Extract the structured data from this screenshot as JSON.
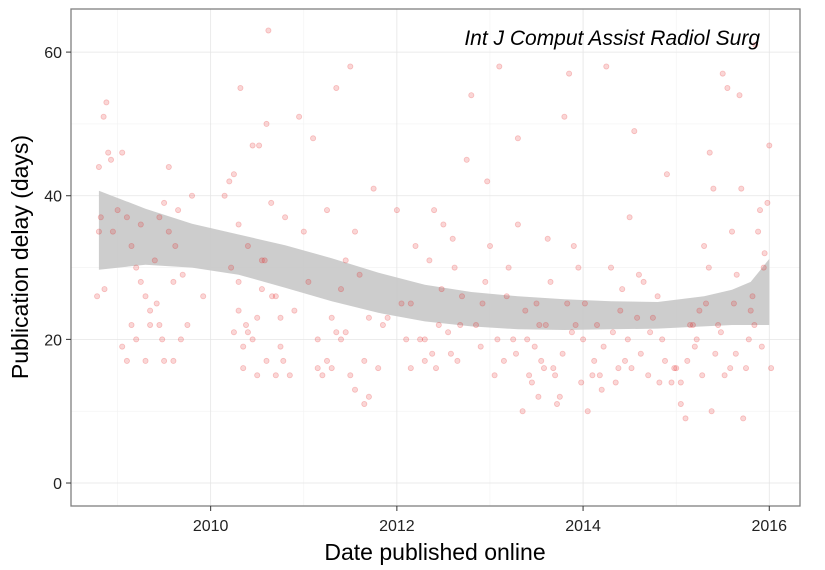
{
  "chart_data": {
    "type": "scatter",
    "annotation": "Int J Comput Assist Radiol Surg",
    "xlabel": "Date published online",
    "ylabel": "Publication delay (days)",
    "xlim": [
      2008.5,
      2016.33
    ],
    "ylim": [
      -3.2,
      66.0
    ],
    "x_ticks": [
      2010,
      2012,
      2014,
      2016
    ],
    "y_ticks": [
      0,
      20,
      40,
      60
    ],
    "grid": "major and minor",
    "point_color": "#e41a1c",
    "point_opacity": 0.18,
    "band_color": "#c8c8c8",
    "smooth_band": {
      "x": [
        2008.8,
        2009.3,
        2009.8,
        2010.3,
        2010.8,
        2011.3,
        2011.8,
        2012.3,
        2012.8,
        2013.3,
        2013.8,
        2014.3,
        2014.8,
        2015.3,
        2015.6,
        2015.8,
        2016.0
      ],
      "lower": [
        29.7,
        30.4,
        30.0,
        29.0,
        27.2,
        25.3,
        23.7,
        22.5,
        21.8,
        21.4,
        21.3,
        21.4,
        21.5,
        21.8,
        22.0,
        22.0,
        22.0
      ],
      "upper": [
        40.7,
        38.2,
        36.1,
        34.6,
        33.1,
        31.3,
        29.3,
        27.6,
        26.6,
        26.0,
        25.6,
        25.3,
        25.2,
        26.0,
        26.9,
        28.0,
        31.2
      ]
    },
    "series": [
      {
        "points": [
          [
            2008.8,
            35
          ],
          [
            2008.8,
            44
          ],
          [
            2008.82,
            37
          ],
          [
            2008.85,
            51
          ],
          [
            2008.88,
            53
          ],
          [
            2008.9,
            46
          ],
          [
            2008.93,
            45
          ],
          [
            2008.95,
            35
          ],
          [
            2008.78,
            26
          ],
          [
            2008.86,
            27
          ],
          [
            2009.0,
            38
          ],
          [
            2009.05,
            46
          ],
          [
            2009.1,
            37
          ],
          [
            2009.15,
            33
          ],
          [
            2009.2,
            30
          ],
          [
            2009.25,
            36
          ],
          [
            2009.3,
            26
          ],
          [
            2009.35,
            22
          ],
          [
            2009.4,
            31
          ],
          [
            2009.42,
            25
          ],
          [
            2009.45,
            22
          ],
          [
            2009.5,
            39
          ],
          [
            2009.55,
            35
          ],
          [
            2009.6,
            28
          ],
          [
            2009.62,
            33
          ],
          [
            2009.65,
            38
          ],
          [
            2009.7,
            29
          ],
          [
            2009.75,
            22
          ],
          [
            2009.8,
            40
          ],
          [
            2009.15,
            22
          ],
          [
            2009.05,
            19
          ],
          [
            2009.1,
            17
          ],
          [
            2009.3,
            17
          ],
          [
            2009.5,
            17
          ],
          [
            2009.35,
            24
          ],
          [
            2009.48,
            20
          ],
          [
            2009.55,
            44
          ],
          [
            2009.25,
            28
          ],
          [
            2009.45,
            37
          ],
          [
            2009.68,
            20
          ],
          [
            2009.92,
            26
          ],
          [
            2009.6,
            17
          ],
          [
            2009.2,
            20
          ],
          [
            2010.15,
            40
          ],
          [
            2010.2,
            42
          ],
          [
            2010.22,
            30
          ],
          [
            2010.25,
            43
          ],
          [
            2010.3,
            28
          ],
          [
            2010.3,
            36
          ],
          [
            2010.32,
            55
          ],
          [
            2010.35,
            19
          ],
          [
            2010.4,
            33
          ],
          [
            2010.45,
            47
          ],
          [
            2010.5,
            23
          ],
          [
            2010.55,
            31
          ],
          [
            2010.6,
            50
          ],
          [
            2010.62,
            63
          ],
          [
            2010.65,
            39
          ],
          [
            2010.7,
            26
          ],
          [
            2010.75,
            23
          ],
          [
            2010.8,
            37
          ],
          [
            2010.3,
            24
          ],
          [
            2010.35,
            16
          ],
          [
            2010.4,
            21
          ],
          [
            2010.5,
            15
          ],
          [
            2010.6,
            17
          ],
          [
            2010.7,
            15
          ],
          [
            2010.85,
            15
          ],
          [
            2010.9,
            24
          ],
          [
            2010.95,
            51
          ],
          [
            2010.55,
            27
          ],
          [
            2010.45,
            20
          ],
          [
            2010.75,
            19
          ],
          [
            2010.25,
            21
          ],
          [
            2010.38,
            22
          ],
          [
            2010.52,
            47
          ],
          [
            2010.58,
            31
          ],
          [
            2010.66,
            26
          ],
          [
            2010.78,
            17
          ],
          [
            2011.0,
            35
          ],
          [
            2011.05,
            28
          ],
          [
            2011.1,
            48
          ],
          [
            2011.15,
            20
          ],
          [
            2011.2,
            15
          ],
          [
            2011.25,
            38
          ],
          [
            2011.3,
            23
          ],
          [
            2011.35,
            55
          ],
          [
            2011.4,
            27
          ],
          [
            2011.45,
            31
          ],
          [
            2011.5,
            58
          ],
          [
            2011.55,
            35
          ],
          [
            2011.6,
            29
          ],
          [
            2011.65,
            17
          ],
          [
            2011.7,
            23
          ],
          [
            2011.75,
            41
          ],
          [
            2011.8,
            16
          ],
          [
            2011.85,
            22
          ],
          [
            2011.9,
            23
          ],
          [
            2011.3,
            16
          ],
          [
            2011.4,
            20
          ],
          [
            2011.5,
            15
          ],
          [
            2011.55,
            13
          ],
          [
            2011.65,
            11
          ],
          [
            2011.7,
            12
          ],
          [
            2011.25,
            17
          ],
          [
            2011.45,
            21
          ],
          [
            2011.35,
            21
          ],
          [
            2011.15,
            16
          ],
          [
            2012.0,
            38
          ],
          [
            2012.05,
            25
          ],
          [
            2012.1,
            20
          ],
          [
            2012.15,
            16
          ],
          [
            2012.2,
            33
          ],
          [
            2012.25,
            20
          ],
          [
            2012.3,
            17
          ],
          [
            2012.35,
            31
          ],
          [
            2012.4,
            38
          ],
          [
            2012.45,
            22
          ],
          [
            2012.5,
            36
          ],
          [
            2012.55,
            21
          ],
          [
            2012.6,
            34
          ],
          [
            2012.65,
            17
          ],
          [
            2012.7,
            26
          ],
          [
            2012.75,
            45
          ],
          [
            2012.8,
            54
          ],
          [
            2012.85,
            22
          ],
          [
            2012.9,
            19
          ],
          [
            2012.95,
            28
          ],
          [
            2012.3,
            20
          ],
          [
            2012.42,
            16
          ],
          [
            2012.48,
            27
          ],
          [
            2012.62,
            30
          ],
          [
            2012.68,
            22
          ],
          [
            2012.92,
            25
          ],
          [
            2012.97,
            42
          ],
          [
            2012.15,
            25
          ],
          [
            2012.38,
            18
          ],
          [
            2012.58,
            18
          ],
          [
            2013.0,
            33
          ],
          [
            2013.05,
            15
          ],
          [
            2013.1,
            58
          ],
          [
            2013.15,
            17
          ],
          [
            2013.2,
            30
          ],
          [
            2013.25,
            20
          ],
          [
            2013.3,
            36
          ],
          [
            2013.35,
            10
          ],
          [
            2013.4,
            20
          ],
          [
            2013.45,
            14
          ],
          [
            2013.5,
            25
          ],
          [
            2013.55,
            17
          ],
          [
            2013.6,
            22
          ],
          [
            2013.65,
            28
          ],
          [
            2013.7,
            15
          ],
          [
            2013.75,
            12
          ],
          [
            2013.8,
            51
          ],
          [
            2013.85,
            57
          ],
          [
            2013.9,
            33
          ],
          [
            2013.95,
            30
          ],
          [
            2013.3,
            48
          ],
          [
            2013.42,
            15
          ],
          [
            2013.48,
            19
          ],
          [
            2013.52,
            12
          ],
          [
            2013.58,
            16
          ],
          [
            2013.62,
            34
          ],
          [
            2013.68,
            16
          ],
          [
            2013.72,
            11
          ],
          [
            2013.78,
            18
          ],
          [
            2013.88,
            21
          ],
          [
            2013.92,
            22
          ],
          [
            2013.98,
            14
          ],
          [
            2013.08,
            20
          ],
          [
            2013.18,
            26
          ],
          [
            2013.28,
            18
          ],
          [
            2013.38,
            24
          ],
          [
            2013.53,
            22
          ],
          [
            2013.83,
            25
          ],
          [
            2014.0,
            20
          ],
          [
            2014.05,
            10
          ],
          [
            2014.1,
            15
          ],
          [
            2014.15,
            22
          ],
          [
            2014.2,
            13
          ],
          [
            2014.25,
            58
          ],
          [
            2014.3,
            30
          ],
          [
            2014.35,
            14
          ],
          [
            2014.4,
            24
          ],
          [
            2014.45,
            17
          ],
          [
            2014.5,
            37
          ],
          [
            2014.55,
            49
          ],
          [
            2014.6,
            29
          ],
          [
            2014.65,
            28
          ],
          [
            2014.7,
            15
          ],
          [
            2014.75,
            23
          ],
          [
            2014.8,
            26
          ],
          [
            2014.85,
            20
          ],
          [
            2014.9,
            43
          ],
          [
            2014.95,
            14
          ],
          [
            2014.02,
            25
          ],
          [
            2014.12,
            17
          ],
          [
            2014.22,
            19
          ],
          [
            2014.32,
            21
          ],
          [
            2014.42,
            27
          ],
          [
            2014.52,
            16
          ],
          [
            2014.58,
            23
          ],
          [
            2014.62,
            18
          ],
          [
            2014.72,
            21
          ],
          [
            2014.82,
            14
          ],
          [
            2014.88,
            17
          ],
          [
            2014.98,
            16
          ],
          [
            2014.18,
            15
          ],
          [
            2014.38,
            16
          ],
          [
            2014.48,
            20
          ],
          [
            2015.0,
            16
          ],
          [
            2015.05,
            11
          ],
          [
            2015.1,
            9
          ],
          [
            2015.15,
            22
          ],
          [
            2015.2,
            19
          ],
          [
            2015.25,
            24
          ],
          [
            2015.3,
            33
          ],
          [
            2015.35,
            30
          ],
          [
            2015.4,
            41
          ],
          [
            2015.45,
            22
          ],
          [
            2015.5,
            57
          ],
          [
            2015.55,
            55
          ],
          [
            2015.6,
            35
          ],
          [
            2015.65,
            29
          ],
          [
            2015.7,
            41
          ],
          [
            2015.75,
            16
          ],
          [
            2015.8,
            24
          ],
          [
            2015.85,
            61
          ],
          [
            2015.9,
            38
          ],
          [
            2015.95,
            32
          ],
          [
            2016.0,
            47
          ],
          [
            2015.05,
            14
          ],
          [
            2015.12,
            17
          ],
          [
            2015.18,
            22
          ],
          [
            2015.22,
            20
          ],
          [
            2015.28,
            15
          ],
          [
            2015.32,
            25
          ],
          [
            2015.38,
            10
          ],
          [
            2015.42,
            18
          ],
          [
            2015.48,
            21
          ],
          [
            2015.52,
            15
          ],
          [
            2015.58,
            16
          ],
          [
            2015.62,
            25
          ],
          [
            2015.68,
            54
          ],
          [
            2015.72,
            9
          ],
          [
            2015.78,
            20
          ],
          [
            2015.82,
            26
          ],
          [
            2015.88,
            35
          ],
          [
            2015.92,
            19
          ],
          [
            2015.98,
            39
          ],
          [
            2016.02,
            16
          ],
          [
            2015.36,
            46
          ],
          [
            2015.64,
            18
          ],
          [
            2015.84,
            22
          ],
          [
            2015.94,
            30
          ]
        ]
      }
    ]
  }
}
